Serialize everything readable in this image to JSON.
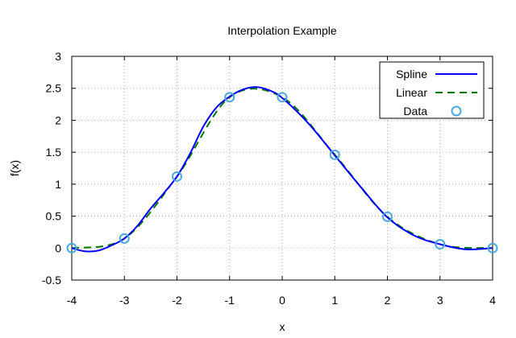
{
  "chart_data": {
    "type": "line",
    "title": "Interpolation Example",
    "xlabel": "x",
    "ylabel": "f(x)",
    "xlim": [
      -4,
      4
    ],
    "ylim": [
      -0.5,
      3
    ],
    "xticks": [
      -4,
      -3,
      -2,
      -1,
      0,
      1,
      2,
      3,
      4
    ],
    "yticks": [
      -0.5,
      0,
      0.5,
      1,
      1.5,
      2,
      2.5,
      3
    ],
    "xtick_labels": [
      "-4",
      "-3",
      "-2",
      "-1",
      "0",
      "1",
      "2",
      "3",
      "4"
    ],
    "ytick_labels": [
      "-0.5",
      "0",
      "0.5",
      "1",
      "1.5",
      "2",
      "2.5",
      "3"
    ],
    "grid": true,
    "legend_position": "top-right",
    "series": [
      {
        "name": "Spline",
        "style": "solid line",
        "color": "#0000ff",
        "x": [
          -4,
          -3.75,
          -3.5,
          -3.25,
          -3,
          -2.75,
          -2.5,
          -2.25,
          -2,
          -1.75,
          -1.5,
          -1.25,
          -1,
          -0.75,
          -0.5,
          -0.25,
          0,
          0.5,
          1,
          1.5,
          2,
          2.5,
          3,
          3.5,
          4
        ],
        "y": [
          0,
          -0.05,
          -0.04,
          0.04,
          0.15,
          0.35,
          0.62,
          0.86,
          1.12,
          1.48,
          1.9,
          2.2,
          2.37,
          2.48,
          2.52,
          2.47,
          2.35,
          1.95,
          1.45,
          0.95,
          0.48,
          0.2,
          0.06,
          -0.02,
          0
        ]
      },
      {
        "name": "Linear",
        "style": "dashed line",
        "color": "#007700",
        "x": [
          -4,
          -3,
          -2,
          -1,
          0,
          1,
          2,
          3,
          4
        ],
        "y": [
          0,
          0.15,
          1.12,
          2.36,
          2.36,
          1.46,
          0.49,
          0.06,
          0
        ]
      },
      {
        "name": "Data",
        "style": "open circle markers",
        "color": "#4aa8e0",
        "x": [
          -4,
          -3,
          -2,
          -1,
          0,
          1,
          2,
          3,
          4
        ],
        "y": [
          0,
          0.15,
          1.12,
          2.36,
          2.36,
          1.46,
          0.49,
          0.06,
          0
        ]
      }
    ]
  }
}
